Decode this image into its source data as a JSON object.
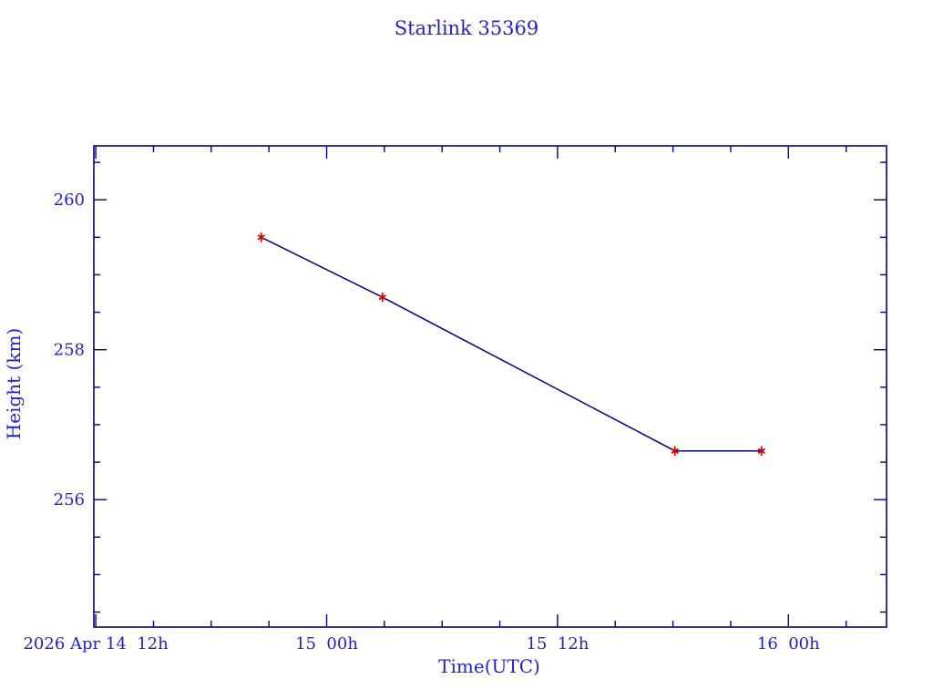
{
  "page": {
    "background_color": "#FFFFFF"
  },
  "chart_data": {
    "type": "line",
    "title": "Starlink 35369",
    "xlabel": "Time(UTC)",
    "ylabel": "Height (km)",
    "grid": false,
    "legend": false,
    "colors": {
      "frame_and_line": "#000080",
      "marker": "#CC0000",
      "text": "#2222CC",
      "background": "#FFFFFF"
    },
    "x_axis": {
      "note": "x values are hours after 2026 Apr 14 12:00 UTC (first major tick)",
      "range": [
        -0.1,
        41.1
      ],
      "major_ticks": [
        {
          "h": 0,
          "label": "2026 Apr 14  12h"
        },
        {
          "h": 12,
          "label": "15  00h"
        },
        {
          "h": 24,
          "label": "15  12h"
        },
        {
          "h": 36,
          "label": "16  00h"
        }
      ],
      "minor_ticks": [
        3,
        6,
        9,
        15,
        18,
        21,
        27,
        30,
        33,
        39
      ]
    },
    "y_axis": {
      "range": [
        254.3,
        260.72
      ],
      "major_ticks": [
        {
          "v": 256,
          "label": "256"
        },
        {
          "v": 258,
          "label": "258"
        },
        {
          "v": 260,
          "label": "260"
        }
      ],
      "minor_ticks": [
        254.5,
        255.0,
        255.5,
        256.5,
        257.0,
        257.5,
        258.5,
        259.0,
        259.5,
        260.5
      ]
    },
    "series": [
      {
        "name": "Starlink 35369 height",
        "marker": "red-asterisk",
        "line_color": "#000080",
        "points": [
          {
            "x_hours": 8.6,
            "time_utc_est": "2026 Apr 14 ~20:35",
            "height_km": 259.5
          },
          {
            "x_hours": 14.9,
            "time_utc_est": "2026 Apr 15 ~02:55",
            "height_km": 258.7
          },
          {
            "x_hours": 30.1,
            "time_utc_est": "2026 Apr 15 ~18:05",
            "height_km": 256.65
          },
          {
            "x_hours": 34.6,
            "time_utc_est": "2026 Apr 15 ~22:35",
            "height_km": 256.65
          }
        ]
      }
    ]
  }
}
